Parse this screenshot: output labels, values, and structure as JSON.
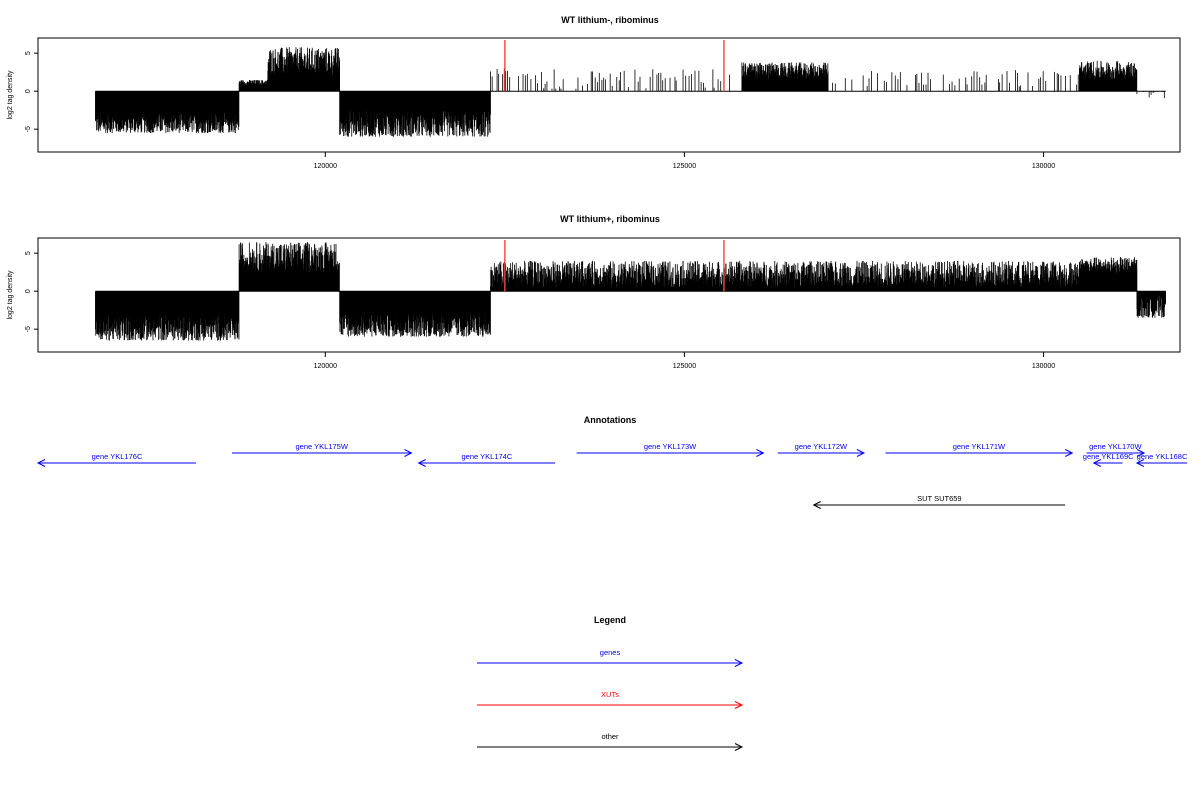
{
  "chart_data": [
    {
      "type": "bar",
      "title": "WT lithium-, ribominus",
      "ylabel": "log2 tag density",
      "xlabel": "",
      "xlim": [
        116000,
        131900
      ],
      "ylim": [
        -8,
        7
      ],
      "x_ticks": [
        120000,
        125000,
        130000
      ],
      "y_ticks": [
        -5,
        0,
        5
      ],
      "segments": [
        {
          "from": 116800,
          "to": 118800,
          "lo": -5.5,
          "hi": -2.8,
          "sign": -1
        },
        {
          "from": 118800,
          "to": 119200,
          "lo": 0.8,
          "hi": 1.5,
          "sign": 1
        },
        {
          "from": 119200,
          "to": 120200,
          "lo": 2.2,
          "hi": 5.8,
          "sign": 1
        },
        {
          "from": 120200,
          "to": 122300,
          "lo": -6.0,
          "hi": -2.5,
          "sign": -1
        },
        {
          "from": 122300,
          "to": 125800,
          "lo": 0.3,
          "hi": 3.0,
          "sign": 1,
          "sparse": true
        },
        {
          "from": 125800,
          "to": 127000,
          "lo": 1.5,
          "hi": 3.8,
          "sign": 1
        },
        {
          "from": 127000,
          "to": 130500,
          "lo": 0.5,
          "hi": 2.8,
          "sign": 1,
          "sparse": true
        },
        {
          "from": 130500,
          "to": 131300,
          "lo": 1.5,
          "hi": 4.0,
          "sign": 1
        },
        {
          "from": 131300,
          "to": 131700,
          "lo": -1.0,
          "hi": 0.2,
          "sign": -1,
          "sparse": true
        }
      ],
      "markers": [
        122500,
        125550
      ],
      "marker_color": "#ff4040"
    },
    {
      "type": "bar",
      "title": "WT lithium+, ribominus",
      "ylabel": "log2 tag density",
      "xlabel": "",
      "xlim": [
        116000,
        131900
      ],
      "ylim": [
        -8,
        7
      ],
      "x_ticks": [
        120000,
        125000,
        130000
      ],
      "y_ticks": [
        -5,
        0,
        5
      ],
      "segments": [
        {
          "from": 116800,
          "to": 118800,
          "lo": -6.5,
          "hi": -3.0,
          "sign": -1
        },
        {
          "from": 118800,
          "to": 120200,
          "lo": 2.5,
          "hi": 6.5,
          "sign": 1
        },
        {
          "from": 120200,
          "to": 122300,
          "lo": -6.0,
          "hi": -2.8,
          "sign": -1
        },
        {
          "from": 122300,
          "to": 131300,
          "lo": 0.5,
          "hi": 4.0,
          "sign": 1
        },
        {
          "from": 130500,
          "to": 131300,
          "lo": 2.0,
          "hi": 4.5,
          "sign": 1
        },
        {
          "from": 131300,
          "to": 131700,
          "lo": -3.5,
          "hi": -0.5,
          "sign": -1
        }
      ],
      "markers": [
        122500,
        125550
      ],
      "marker_color": "#ff4040"
    }
  ],
  "annotations": {
    "title": "Annotations",
    "features": [
      {
        "label": "gene YKL176C",
        "from": 116000,
        "to": 118200,
        "strand": "-",
        "row": 1,
        "color": "#0000ff"
      },
      {
        "label": "gene YKL175W",
        "from": 118700,
        "to": 121200,
        "strand": "+",
        "row": 0,
        "color": "#0000ff"
      },
      {
        "label": "gene YKL174C",
        "from": 121300,
        "to": 123200,
        "strand": "-",
        "row": 1,
        "color": "#0000ff"
      },
      {
        "label": "gene YKL173W",
        "from": 123500,
        "to": 126100,
        "strand": "+",
        "row": 0,
        "color": "#0000ff"
      },
      {
        "label": "gene YKL172W",
        "from": 126300,
        "to": 127500,
        "strand": "+",
        "row": 0,
        "color": "#0000ff"
      },
      {
        "label": "gene YKL171W",
        "from": 127800,
        "to": 130400,
        "strand": "+",
        "row": 0,
        "color": "#0000ff"
      },
      {
        "label": "gene YKL170W",
        "from": 130600,
        "to": 131400,
        "strand": "+",
        "row": 0,
        "color": "#0000ff"
      },
      {
        "label": "gene YKL169C",
        "from": 130700,
        "to": 131100,
        "strand": "-",
        "row": 1,
        "color": "#0000ff"
      },
      {
        "label": "gene YKL168C",
        "from": 131300,
        "to": 132000,
        "strand": "-",
        "row": 1,
        "color": "#0000ff"
      },
      {
        "label": "SUT SUT659",
        "from": 126800,
        "to": 130300,
        "strand": "-",
        "row": 2,
        "color": "#000000"
      }
    ]
  },
  "legend": {
    "title": "Legend",
    "items": [
      {
        "label": "genes",
        "color": "#0000ff"
      },
      {
        "label": "XUTs",
        "color": "#ff0000"
      },
      {
        "label": "other",
        "color": "#000000"
      }
    ]
  }
}
